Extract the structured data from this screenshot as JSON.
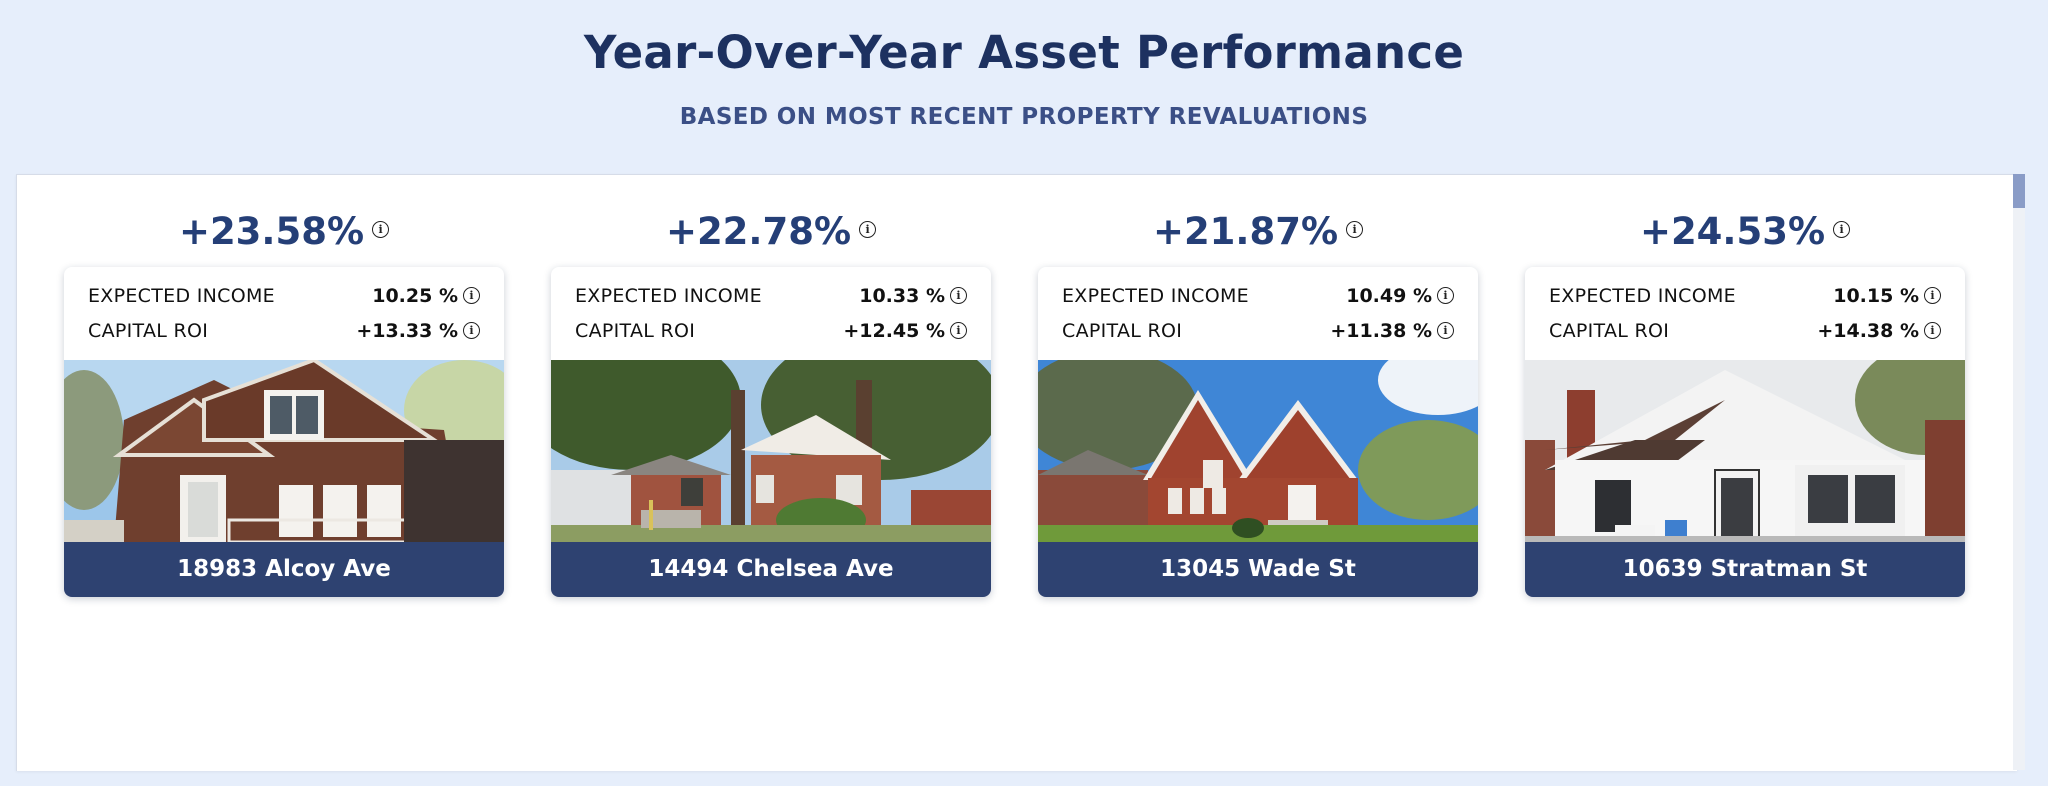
{
  "header": {
    "title": "Year-Over-Year Asset Performance",
    "subtitle": "BASED ON MOST RECENT PROPERTY REVALUATIONS"
  },
  "info_glyph": "i",
  "properties": [
    {
      "growth": "+23.58%",
      "expected_income_label": "EXPECTED INCOME",
      "expected_income_value": "10.25 %",
      "capital_roi_label": "CAPITAL ROI",
      "capital_roi_value": "+13.33 %",
      "address": "18983 Alcoy Ave"
    },
    {
      "growth": "+22.78%",
      "expected_income_label": "EXPECTED INCOME",
      "expected_income_value": "10.33 %",
      "capital_roi_label": "CAPITAL ROI",
      "capital_roi_value": "+12.45 %",
      "address": "14494 Chelsea Ave"
    },
    {
      "growth": "+21.87%",
      "expected_income_label": "EXPECTED INCOME",
      "expected_income_value": "10.49 %",
      "capital_roi_label": "CAPITAL ROI",
      "capital_roi_value": "+11.38 %",
      "address": "13045 Wade St"
    },
    {
      "growth": "+24.53%",
      "expected_income_label": "EXPECTED INCOME",
      "expected_income_value": "10.15 %",
      "capital_roi_label": "CAPITAL ROI",
      "capital_roi_value": "+14.38 %",
      "address": "10639 Stratman St"
    }
  ],
  "colors": {
    "page_bg": "#e6eefb",
    "title": "#1d3160",
    "accent_navy": "#2e4271",
    "growth_text": "#253f77"
  }
}
